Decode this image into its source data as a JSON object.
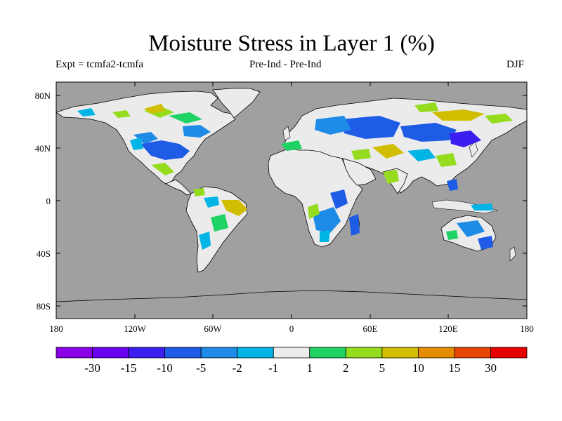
{
  "title": "Moisture Stress in Layer 1 (%)",
  "subtitle_left": "Expt = tcmfa2-tcmfa",
  "subtitle_center": "Pre-Ind - Pre-Ind",
  "subtitle_right": "DJF",
  "lat_labels": [
    "80N",
    "40N",
    "0",
    "40S",
    "80S"
  ],
  "lon_labels": [
    "180",
    "120W",
    "60W",
    "0",
    "60E",
    "120E",
    "180"
  ],
  "colors": {
    "ocean": "#a0a0a0",
    "land_neutral": "#ebebeb"
  },
  "colorbar": {
    "colors": [
      "#8a00e6",
      "#6a00f0",
      "#3b1ef0",
      "#1e5ce6",
      "#1e8ce6",
      "#00b4e6",
      "#ebebeb",
      "#1ed264",
      "#96dc1e",
      "#d2be00",
      "#e68c00",
      "#e64600",
      "#e60000"
    ],
    "labels": [
      "-30",
      "-15",
      "-10",
      "-5",
      "-2",
      "-1",
      "1",
      "2",
      "5",
      "10",
      "15",
      "30"
    ]
  }
}
